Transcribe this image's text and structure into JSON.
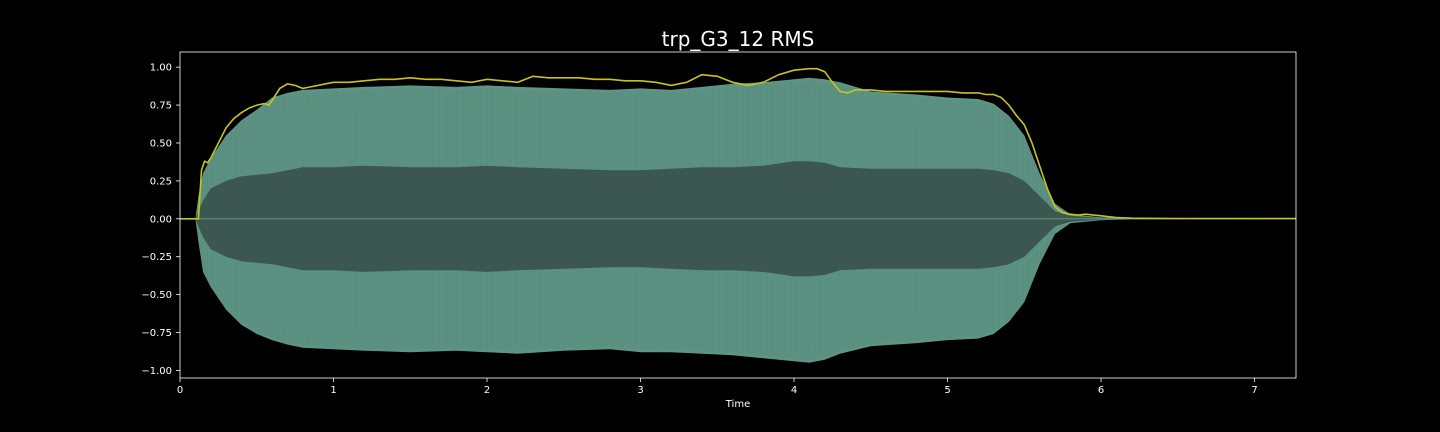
{
  "chart_data": {
    "type": "line",
    "title": "trp_G3_12 RMS",
    "xlabel": "Time",
    "ylabel": "",
    "xlim": [
      0,
      7.27
    ],
    "ylim": [
      -1.05,
      1.1
    ],
    "grid": false,
    "x_ticks": [
      0,
      1,
      2,
      3,
      4,
      5,
      6,
      7
    ],
    "x_tick_labels": [
      "0",
      "1",
      "2",
      "3",
      "4",
      "5",
      "6",
      "7"
    ],
    "y_ticks": [
      1.0,
      0.75,
      0.5,
      0.25,
      0.0,
      -0.25,
      -0.5,
      -0.75,
      -1.0
    ],
    "y_tick_labels": [
      "1.00",
      "0.75",
      "0.50",
      "0.25",
      "0.00",
      "−0.25",
      "−0.50",
      "−0.75",
      "−1.00"
    ],
    "colors": {
      "background": "#000000",
      "axes_frame": "#ffffff",
      "waveform_outer": "#5e9485",
      "waveform_inner": "#3b574f",
      "rms_line": "#c8c41e"
    },
    "series": [
      {
        "kind": "waveform-envelope",
        "t": [
          0,
          0.1,
          0.12,
          0.15,
          0.2,
          0.3,
          0.4,
          0.5,
          0.6,
          0.7,
          0.8,
          1.0,
          1.2,
          1.5,
          1.8,
          2.0,
          2.2,
          2.5,
          2.8,
          3.0,
          3.2,
          3.4,
          3.6,
          3.8,
          4.0,
          4.1,
          4.2,
          4.3,
          4.5,
          4.8,
          5.0,
          5.2,
          5.3,
          5.4,
          5.5,
          5.6,
          5.7,
          5.8,
          6.0,
          6.2,
          7.27
        ],
        "upper": [
          0,
          0,
          0.15,
          0.3,
          0.4,
          0.55,
          0.65,
          0.72,
          0.8,
          0.83,
          0.85,
          0.86,
          0.87,
          0.88,
          0.87,
          0.88,
          0.87,
          0.86,
          0.85,
          0.86,
          0.85,
          0.87,
          0.89,
          0.9,
          0.92,
          0.93,
          0.92,
          0.9,
          0.84,
          0.82,
          0.8,
          0.79,
          0.76,
          0.68,
          0.55,
          0.3,
          0.1,
          0.03,
          0.01,
          0.004,
          0
        ],
        "lower": [
          0,
          0,
          -0.15,
          -0.35,
          -0.45,
          -0.6,
          -0.7,
          -0.76,
          -0.8,
          -0.83,
          -0.85,
          -0.86,
          -0.87,
          -0.88,
          -0.87,
          -0.88,
          -0.89,
          -0.87,
          -0.86,
          -0.88,
          -0.88,
          -0.89,
          -0.9,
          -0.92,
          -0.94,
          -0.95,
          -0.93,
          -0.89,
          -0.84,
          -0.82,
          -0.8,
          -0.79,
          -0.76,
          -0.68,
          -0.55,
          -0.3,
          -0.1,
          -0.03,
          -0.01,
          -0.004,
          0
        ],
        "inner": [
          0,
          0,
          0.05,
          0.12,
          0.2,
          0.25,
          0.28,
          0.29,
          0.3,
          0.32,
          0.34,
          0.34,
          0.35,
          0.34,
          0.34,
          0.35,
          0.34,
          0.33,
          0.32,
          0.32,
          0.33,
          0.34,
          0.34,
          0.35,
          0.38,
          0.38,
          0.37,
          0.34,
          0.33,
          0.33,
          0.33,
          0.33,
          0.32,
          0.3,
          0.25,
          0.15,
          0.05,
          0.02,
          0.005,
          0.002,
          0
        ]
      },
      {
        "kind": "rms-line",
        "t": [
          0,
          0.12,
          0.14,
          0.16,
          0.18,
          0.2,
          0.25,
          0.3,
          0.35,
          0.4,
          0.45,
          0.5,
          0.55,
          0.58,
          0.6,
          0.65,
          0.7,
          0.75,
          0.8,
          0.85,
          0.9,
          0.95,
          1.0,
          1.1,
          1.2,
          1.3,
          1.4,
          1.5,
          1.6,
          1.7,
          1.8,
          1.9,
          2.0,
          2.1,
          2.2,
          2.3,
          2.4,
          2.5,
          2.6,
          2.7,
          2.8,
          2.9,
          3.0,
          3.1,
          3.2,
          3.3,
          3.4,
          3.5,
          3.6,
          3.7,
          3.8,
          3.9,
          4.0,
          4.1,
          4.15,
          4.2,
          4.25,
          4.3,
          4.35,
          4.4,
          4.5,
          4.6,
          4.7,
          4.8,
          4.9,
          5.0,
          5.1,
          5.2,
          5.25,
          5.3,
          5.35,
          5.4,
          5.45,
          5.5,
          5.55,
          5.6,
          5.65,
          5.7,
          5.75,
          5.8,
          5.85,
          5.9,
          6.0,
          6.1,
          6.2,
          6.5,
          7.27
        ],
        "values": [
          0,
          0,
          0.32,
          0.38,
          0.37,
          0.4,
          0.5,
          0.6,
          0.66,
          0.7,
          0.73,
          0.75,
          0.76,
          0.75,
          0.78,
          0.86,
          0.89,
          0.88,
          0.86,
          0.87,
          0.88,
          0.89,
          0.9,
          0.9,
          0.91,
          0.92,
          0.92,
          0.93,
          0.92,
          0.92,
          0.91,
          0.9,
          0.92,
          0.91,
          0.9,
          0.94,
          0.93,
          0.93,
          0.93,
          0.92,
          0.92,
          0.91,
          0.91,
          0.9,
          0.88,
          0.9,
          0.95,
          0.94,
          0.9,
          0.88,
          0.9,
          0.95,
          0.98,
          0.99,
          0.99,
          0.97,
          0.9,
          0.84,
          0.83,
          0.85,
          0.85,
          0.84,
          0.84,
          0.84,
          0.84,
          0.84,
          0.83,
          0.83,
          0.82,
          0.82,
          0.8,
          0.75,
          0.68,
          0.62,
          0.5,
          0.35,
          0.2,
          0.08,
          0.04,
          0.03,
          0.025,
          0.03,
          0.02,
          0.008,
          0.004,
          0.002,
          0.001
        ]
      }
    ]
  }
}
